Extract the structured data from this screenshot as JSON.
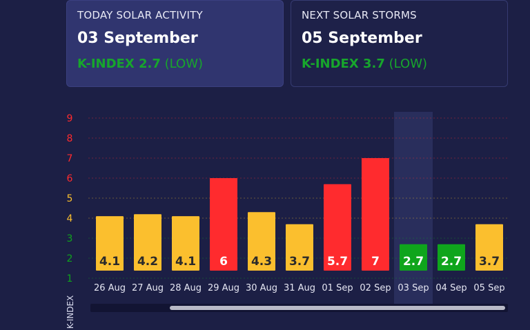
{
  "today": {
    "label": "TODAY SOLAR ACTIVITY",
    "date": "03 September",
    "k_index": "K-INDEX 2.7",
    "level": "(LOW)"
  },
  "next": {
    "label": "NEXT SOLAR STORMS",
    "date": "05 September",
    "k_index": "K-INDEX 3.7",
    "level": "(LOW)"
  },
  "colors": {
    "background": "#1c1f45",
    "low": "#0fa51c",
    "moderate": "#fbbf2e",
    "high": "#ff2b2e",
    "highlight": "#2c3160"
  },
  "chart_data": {
    "type": "bar",
    "ylabel": "K-INDEX",
    "ylim": [
      0,
      9
    ],
    "yticks": [
      1,
      2,
      3,
      4,
      5,
      6,
      7,
      8,
      9
    ],
    "grid": true,
    "categories": [
      "26 Aug",
      "27 Aug",
      "28 Aug",
      "29 Aug",
      "30 Aug",
      "31 Aug",
      "01 Sep",
      "02 Sep",
      "03 Sep",
      "04 Sep",
      "05 Sep"
    ],
    "values": [
      4.1,
      4.2,
      4.1,
      6,
      4.3,
      3.7,
      5.7,
      7,
      2.7,
      2.7,
      3.7
    ],
    "value_labels": [
      "4.1",
      "4.2",
      "4.1",
      "6",
      "4.3",
      "3.7",
      "5.7",
      "7",
      "2.7",
      "2.7",
      "3.7"
    ],
    "highlighted": "03 Sep"
  }
}
